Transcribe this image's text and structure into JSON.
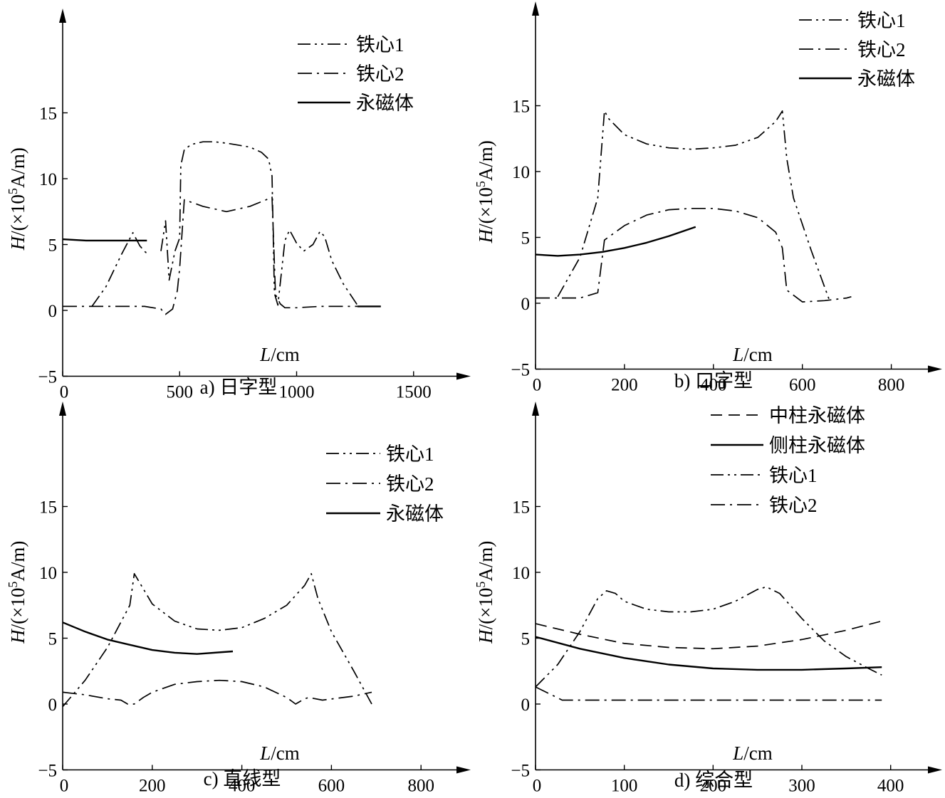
{
  "chart_data": [
    {
      "type": "line",
      "caption": "a) 日字型",
      "xlabel": "L/cm",
      "ylabel": "H/(×10^5A/m)",
      "xlim": [
        0,
        1750
      ],
      "ylim": [
        -5,
        18
      ],
      "xticks": [
        "0",
        "500",
        "1000",
        "1500"
      ],
      "xtick_values": [
        0,
        500,
        1000,
        1500
      ],
      "yticks": [
        "−5",
        "0",
        "5",
        "10",
        "15"
      ],
      "ytick_values": [
        -5,
        0,
        5,
        10,
        15
      ],
      "legend": "top-right",
      "series": [
        {
          "name": "铁心1",
          "style": "dash-dot-dot",
          "x": [
            125,
            185,
            250,
            300,
            330,
            355,
            365
          ],
          "y": [
            0.3,
            1.8,
            4.2,
            5.9,
            4.9,
            4.4,
            4.4
          ]
        },
        {
          "name": "铁心2",
          "style": "dash-dot",
          "x": [
            0,
            200,
            350,
            420,
            440,
            470,
            490,
            500,
            520,
            600,
            700,
            800,
            870,
            895,
            910,
            930,
            950,
            1000,
            1100,
            1200,
            1260
          ],
          "y": [
            0.3,
            0.3,
            0.3,
            0.1,
            -0.3,
            0.1,
            1.5,
            3.2,
            8.4,
            7.9,
            7.5,
            7.9,
            8.4,
            8.6,
            1.2,
            0.5,
            0.2,
            0.2,
            0.3,
            0.3,
            0.3
          ]
        },
        {
          "name": "永磁体",
          "style": "solid",
          "x": [
            0,
            100,
            200,
            360
          ],
          "y": [
            5.4,
            5.3,
            5.3,
            5.3
          ]
        },
        {
          "name": "",
          "style": "solid",
          "x": [
            1260,
            1360
          ],
          "y": [
            0.3,
            0.3
          ]
        },
        {
          "name": "",
          "style": "dash-dot-dot",
          "x": [
            420,
            440,
            455,
            480,
            500,
            505,
            520,
            550,
            600,
            650,
            700,
            800,
            850,
            880,
            895,
            905,
            920,
            950,
            970,
            1000,
            1030,
            1070,
            1100,
            1120,
            1150,
            1200,
            1260
          ],
          "y": [
            4.5,
            6.8,
            2.3,
            4.5,
            5.5,
            11.0,
            12.2,
            12.6,
            12.8,
            12.8,
            12.7,
            12.4,
            12.0,
            11.5,
            10.2,
            1.3,
            0.4,
            5.3,
            6.1,
            5.1,
            4.5,
            5.0,
            6.0,
            5.6,
            3.8,
            2.0,
            0.4
          ]
        }
      ]
    },
    {
      "type": "line",
      "caption": "b) 口字型",
      "xlabel": "L/cm",
      "ylabel": "H/(×10^5A/m)",
      "xlim": [
        0,
        900
      ],
      "ylim": [
        -5,
        18
      ],
      "xticks": [
        "0",
        "200",
        "400",
        "600",
        "800"
      ],
      "xtick_values": [
        0,
        200,
        400,
        600,
        800
      ],
      "yticks": [
        "−5",
        "0",
        "5",
        "10",
        "15"
      ],
      "ytick_values": [
        -5,
        0,
        5,
        10,
        15
      ],
      "legend": "top-right",
      "series": [
        {
          "name": "铁心1",
          "style": "dash-dot-dot",
          "x": [
            50,
            100,
            140,
            155,
            165,
            200,
            250,
            300,
            350,
            400,
            450,
            500,
            540,
            555,
            565,
            580,
            620,
            660
          ],
          "y": [
            0.5,
            3.5,
            8.0,
            14.6,
            14.0,
            12.8,
            12.1,
            11.8,
            11.7,
            11.8,
            12.0,
            12.6,
            13.8,
            14.6,
            11.0,
            8.0,
            4.0,
            0.3
          ]
        },
        {
          "name": "铁心2",
          "style": "dash-dot",
          "x": [
            0,
            50,
            100,
            140,
            155,
            200,
            250,
            300,
            350,
            400,
            450,
            500,
            540,
            555,
            565,
            600,
            650,
            700,
            710
          ],
          "y": [
            0.4,
            0.4,
            0.4,
            0.8,
            4.8,
            5.9,
            6.7,
            7.1,
            7.2,
            7.2,
            7.0,
            6.5,
            5.4,
            4.2,
            1.0,
            0.1,
            0.2,
            0.4,
            0.5
          ]
        },
        {
          "name": "永磁体",
          "style": "solid",
          "x": [
            0,
            50,
            100,
            150,
            200,
            250,
            300,
            360
          ],
          "y": [
            3.7,
            3.6,
            3.7,
            3.9,
            4.2,
            4.6,
            5.1,
            5.8
          ]
        }
      ]
    },
    {
      "type": "line",
      "caption": "c) 直线型",
      "xlabel": "L/cm",
      "ylabel": "H/(×10^5A/m)",
      "xlim": [
        0,
        900
      ],
      "ylim": [
        -5,
        18
      ],
      "xticks": [
        "0",
        "200",
        "400",
        "600",
        "800"
      ],
      "xtick_values": [
        0,
        200,
        400,
        600,
        800
      ],
      "yticks": [
        "−5",
        "0",
        "5",
        "10",
        "15"
      ],
      "ytick_values": [
        -5,
        0,
        5,
        10,
        15
      ],
      "legend": "top-right",
      "series": [
        {
          "name": "铁心1",
          "style": "dash-dot-dot",
          "x": [
            0,
            50,
            100,
            150,
            160,
            200,
            250,
            300,
            350,
            400,
            450,
            500,
            540,
            555,
            570,
            600,
            650,
            690
          ],
          "y": [
            -0.2,
            1.8,
            4.3,
            7.5,
            9.9,
            7.6,
            6.3,
            5.7,
            5.6,
            5.8,
            6.5,
            7.5,
            9.0,
            9.9,
            8.0,
            5.5,
            2.5,
            0.0
          ]
        },
        {
          "name": "铁心2",
          "style": "dash-dot",
          "x": [
            0,
            50,
            100,
            130,
            145,
            160,
            180,
            200,
            250,
            300,
            350,
            400,
            450,
            500,
            520,
            540,
            550,
            580,
            650,
            690
          ],
          "y": [
            0.9,
            0.7,
            0.4,
            0.3,
            0.0,
            0.0,
            0.5,
            0.9,
            1.5,
            1.7,
            1.8,
            1.7,
            1.3,
            0.5,
            0.0,
            0.4,
            0.5,
            0.3,
            0.6,
            0.9
          ]
        },
        {
          "name": "永磁体",
          "style": "solid",
          "x": [
            0,
            50,
            100,
            150,
            200,
            250,
            300,
            380
          ],
          "y": [
            6.2,
            5.5,
            4.9,
            4.5,
            4.1,
            3.9,
            3.8,
            4.0
          ]
        }
      ]
    },
    {
      "type": "line",
      "caption": "d) 综合型",
      "xlabel": "L/cm",
      "ylabel": "H/(×10^5A/m)",
      "xlim": [
        0,
        450
      ],
      "ylim": [
        -5,
        18
      ],
      "xticks": [
        "0",
        "100",
        "200",
        "300",
        "400"
      ],
      "xtick_values": [
        0,
        100,
        200,
        300,
        400
      ],
      "yticks": [
        "−5",
        "0",
        "5",
        "10",
        "15"
      ],
      "ytick_values": [
        -5,
        0,
        5,
        10,
        15
      ],
      "legend": "top-right",
      "series": [
        {
          "name": "中柱永磁体",
          "style": "dashed",
          "x": [
            0,
            50,
            100,
            150,
            200,
            250,
            300,
            350,
            390
          ],
          "y": [
            6.1,
            5.3,
            4.6,
            4.3,
            4.2,
            4.4,
            4.9,
            5.6,
            6.3
          ]
        },
        {
          "name": "侧柱永磁体",
          "style": "solid",
          "x": [
            0,
            50,
            100,
            150,
            200,
            250,
            300,
            350,
            390
          ],
          "y": [
            5.1,
            4.2,
            3.5,
            3.0,
            2.7,
            2.6,
            2.6,
            2.7,
            2.8
          ]
        },
        {
          "name": "铁心1",
          "style": "dash-dot-dot",
          "x": [
            0,
            25,
            50,
            70,
            80,
            90,
            100,
            125,
            150,
            175,
            200,
            225,
            250,
            260,
            275,
            300,
            325,
            350,
            375,
            390
          ],
          "y": [
            1.3,
            3.0,
            5.5,
            8.0,
            8.6,
            8.4,
            7.8,
            7.2,
            7.0,
            7.0,
            7.2,
            7.8,
            8.7,
            8.9,
            8.4,
            6.5,
            4.8,
            3.6,
            2.7,
            2.2
          ]
        },
        {
          "name": "铁心2",
          "style": "dash-dot",
          "x": [
            0,
            15,
            30,
            100,
            200,
            300,
            390
          ],
          "y": [
            1.3,
            0.8,
            0.3,
            0.3,
            0.3,
            0.3,
            0.3
          ]
        }
      ]
    }
  ]
}
